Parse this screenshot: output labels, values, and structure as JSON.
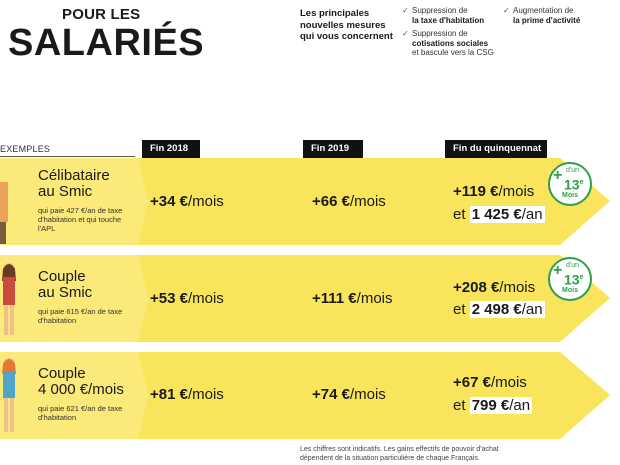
{
  "header": {
    "title_small": "POUR LES",
    "title_big": "SALARIÉS",
    "intro": "Les principales nouvelles mesures qui vous concernent",
    "measures": [
      {
        "pre": "Suppression de",
        "bold": "la taxe d'habitation",
        "post": ""
      },
      {
        "pre": "Suppression de",
        "bold": "cotisations sociales",
        "post": "et bascule vers la CSG"
      },
      {
        "pre": "Augmentation de",
        "bold": "la prime d'activité",
        "post": ""
      }
    ]
  },
  "table": {
    "examples_label": "EXEMPLES",
    "columns": [
      "Fin 2018",
      "Fin 2019",
      "Fin du quinquennat"
    ],
    "rows": [
      {
        "title_line1": "Célibataire",
        "title_line2": "au Smic",
        "sub": "qui paie 427 €/an de taxe d'habitation et qui touche l'APL",
        "v2018": {
          "amount": "+34 €",
          "unit": "/mois"
        },
        "v2019": {
          "amount": "+66 €",
          "unit": "/mois"
        },
        "vend_month": {
          "amount": "+119 €",
          "unit": "/mois"
        },
        "vend_year": {
          "prefix": "et ",
          "amount": "1 425 €",
          "unit": "/an"
        },
        "badge": {
          "plus": "+",
          "small": "d'un",
          "num": "13",
          "sup": "e",
          "mois": "Mois"
        }
      },
      {
        "title_line1": "Couple",
        "title_line2": "au Smic",
        "sub": "qui paie 615 €/an de taxe d'habitation",
        "v2018": {
          "amount": "+53 €",
          "unit": "/mois"
        },
        "v2019": {
          "amount": "+111 €",
          "unit": "/mois"
        },
        "vend_month": {
          "amount": "+208 €",
          "unit": "/mois"
        },
        "vend_year": {
          "prefix": "et ",
          "amount": "2 498 €",
          "unit": "/an"
        },
        "badge": {
          "plus": "+",
          "small": "d'un",
          "num": "13",
          "sup": "e",
          "mois": "Mois"
        }
      },
      {
        "title_line1": "Couple",
        "title_line2": "4 000 €/mois",
        "sub": "qui paie 621 €/an de taxe d'habitation",
        "v2018": {
          "amount": "+81 €",
          "unit": "/mois"
        },
        "v2019": {
          "amount": "+74 €",
          "unit": "/mois"
        },
        "vend_month": {
          "amount": "+67 €",
          "unit": "/mois"
        },
        "vend_year": {
          "prefix": "et ",
          "amount": "799 €",
          "unit": "/an"
        }
      }
    ]
  },
  "footnote": "Les chiffres sont indicatifs. Les gains effectifs de pouvoir d'achat dépendent de la situation particulière de chaque Français.",
  "colors": {
    "band": "#f9e45b",
    "band_light": "#fbe97a",
    "black": "#111111",
    "badge_green": "#2e9e4a"
  }
}
